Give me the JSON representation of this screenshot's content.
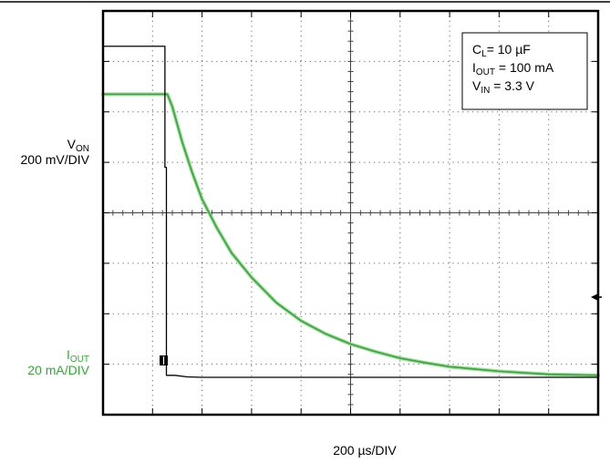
{
  "chart_data": {
    "type": "line",
    "title": "",
    "xlabel": "200 µs/DIV",
    "grid": true,
    "x_divisions": 10,
    "y_divisions": 8,
    "x_range_div": [
      0,
      10
    ],
    "channels": {
      "von": {
        "label_main": "V",
        "label_sub": "ON",
        "scale": "200 mV/DIV",
        "color": "#000000"
      },
      "iout": {
        "label_main": "I",
        "label_sub": "OUT",
        "scale": "20 mA/DIV",
        "color": "#33aa33"
      }
    },
    "series": [
      {
        "name": "V_ON",
        "color": "#000000",
        "x": [
          0,
          1.25,
          1.25,
          1.28,
          1.28,
          1.45,
          1.7,
          2.0,
          3.0,
          5.0,
          7.5,
          10.0
        ],
        "y": [
          7.3,
          7.3,
          4.9,
          4.9,
          0.78,
          0.78,
          0.75,
          0.74,
          0.74,
          0.74,
          0.74,
          0.74
        ]
      },
      {
        "name": "I_OUT",
        "color": "#33aa33",
        "x": [
          0,
          1.2,
          1.3,
          1.4,
          1.6,
          1.8,
          2.0,
          2.3,
          2.6,
          3.0,
          3.5,
          4.0,
          4.5,
          5.0,
          5.5,
          6.0,
          6.5,
          7.0,
          8.0,
          9.0,
          10.0
        ],
        "y": [
          6.35,
          6.35,
          6.35,
          6.1,
          5.4,
          4.8,
          4.27,
          3.7,
          3.2,
          2.72,
          2.22,
          1.86,
          1.6,
          1.4,
          1.25,
          1.12,
          1.03,
          0.95,
          0.86,
          0.8,
          0.78
        ]
      }
    ],
    "legend": {
      "position": "top-right",
      "lines": [
        {
          "main": "C",
          "sub": "L",
          "rest": "= 10 µF"
        },
        {
          "main": "I",
          "sub": "OUT",
          "rest": " = 100 mA"
        },
        {
          "main": "V",
          "sub": "IN",
          "rest": " = 3.3 V"
        }
      ]
    }
  }
}
